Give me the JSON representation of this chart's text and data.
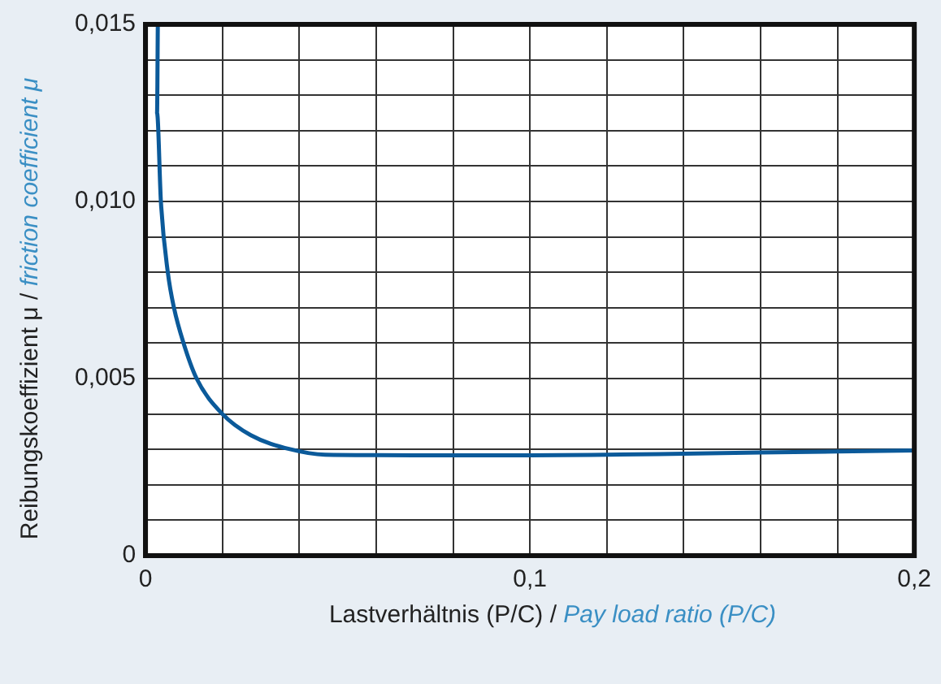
{
  "chart_data": {
    "type": "line",
    "xlabel": "Lastverhältnis (P/C) / Pay load ratio (P/C)",
    "ylabel": "Reibungskoeffizient μ / friction coefficient μ",
    "x": [
      0.0032,
      0.003,
      0.004,
      0.0058,
      0.0074,
      0.0099,
      0.0133,
      0.02,
      0.0274,
      0.0378,
      0.0467,
      0.06,
      0.08,
      0.1,
      0.12,
      0.14,
      0.16,
      0.18,
      0.2
    ],
    "series": [
      {
        "color": "#0b5a9a",
        "values": [
          0.015,
          0.0125,
          0.01,
          0.008,
          0.007,
          0.006,
          0.005,
          0.004,
          0.0034,
          0.003,
          0.00285,
          0.00284,
          0.00283,
          0.00283,
          0.00285,
          0.00288,
          0.00291,
          0.00294,
          0.00297
        ]
      }
    ],
    "xlim": [
      0,
      0.2
    ],
    "ylim": [
      0,
      0.015
    ],
    "xticks": [
      {
        "value": 0,
        "label": "0"
      },
      {
        "value": 0.02,
        "label": null
      },
      {
        "value": 0.04,
        "label": null
      },
      {
        "value": 0.06,
        "label": null
      },
      {
        "value": 0.08,
        "label": null
      },
      {
        "value": 0.1,
        "label": "0,1"
      },
      {
        "value": 0.12,
        "label": null
      },
      {
        "value": 0.14,
        "label": null
      },
      {
        "value": 0.16,
        "label": null
      },
      {
        "value": 0.18,
        "label": null
      },
      {
        "value": 0.2,
        "label": "0,2"
      }
    ],
    "yticks": [
      {
        "value": 0,
        "label": "0"
      },
      {
        "value": 0.001,
        "label": null
      },
      {
        "value": 0.002,
        "label": null
      },
      {
        "value": 0.003,
        "label": null
      },
      {
        "value": 0.004,
        "label": null
      },
      {
        "value": 0.005,
        "label": "0,005"
      },
      {
        "value": 0.006,
        "label": null
      },
      {
        "value": 0.007,
        "label": null
      },
      {
        "value": 0.008,
        "label": null
      },
      {
        "value": 0.009,
        "label": null
      },
      {
        "value": 0.01,
        "label": "0,010"
      },
      {
        "value": 0.011,
        "label": null
      },
      {
        "value": 0.012,
        "label": null
      },
      {
        "value": 0.013,
        "label": null
      },
      {
        "value": 0.014,
        "label": null
      },
      {
        "value": 0.015,
        "label": "0,015"
      }
    ],
    "grid": true,
    "marker": "none",
    "line_style": "solid",
    "legend": false
  }
}
